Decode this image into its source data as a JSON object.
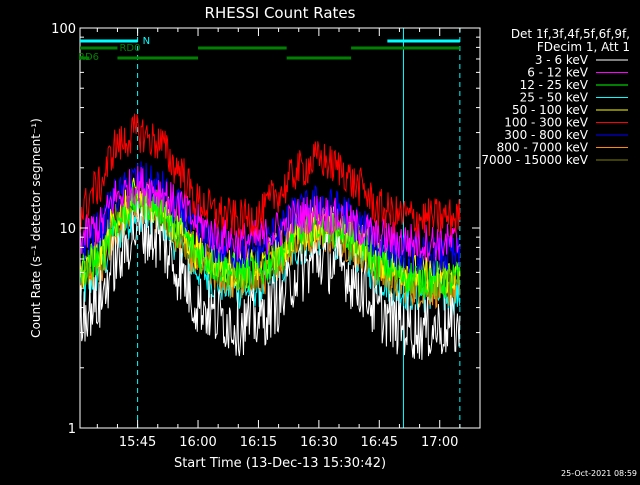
{
  "chart_data": {
    "type": "line",
    "title": "RHESSI Count Rates",
    "xlabel": "Start Time (13-Dec-13 15:30:42)",
    "ylabel": "Count Rate (s⁻¹ detector segment⁻¹)",
    "yscale": "log",
    "ylim": [
      1,
      100
    ],
    "xlim": [
      "15:30:42",
      "17:10:00"
    ],
    "x_ticks": [
      "15:45",
      "16:00",
      "16:15",
      "16:30",
      "16:45",
      "17:00"
    ],
    "y_ticks": [
      "1",
      "10",
      "100"
    ],
    "time_points": [
      "15:30:42",
      "15:35",
      "15:40",
      "15:45",
      "15:50",
      "15:55",
      "16:00",
      "16:05",
      "16:10",
      "16:15",
      "16:20",
      "16:25",
      "16:30",
      "16:35",
      "16:40",
      "16:45",
      "16:50",
      "16:55",
      "17:00",
      "17:05"
    ],
    "series": [
      {
        "name": "3 - 6 keV",
        "color": "#ffffff",
        "values": [
          3.8,
          4.2,
          7.0,
          10.0,
          8.8,
          6.2,
          4.2,
          3.6,
          3.3,
          3.5,
          4.3,
          6.0,
          7.0,
          6.5,
          5.2,
          3.8,
          3.3,
          3.1,
          3.2,
          3.2
        ]
      },
      {
        "name": "6 - 12 keV",
        "color": "#ff00ff",
        "values": [
          9.0,
          10.0,
          14.5,
          16.5,
          15.5,
          13.0,
          10.5,
          9.2,
          8.6,
          8.8,
          9.8,
          11.5,
          12.0,
          11.2,
          10.0,
          9.0,
          8.6,
          8.5,
          8.5,
          8.4
        ]
      },
      {
        "name": "12 - 25 keV",
        "color": "#00ff00",
        "values": [
          6.0,
          7.0,
          11.0,
          14.0,
          13.0,
          10.0,
          7.5,
          6.5,
          6.0,
          6.1,
          7.5,
          9.5,
          10.5,
          10.0,
          8.5,
          6.8,
          6.0,
          5.6,
          5.5,
          5.5
        ]
      },
      {
        "name": "25 - 50 keV",
        "color": "#00ffff",
        "values": [
          4.8,
          5.8,
          9.5,
          12.0,
          11.0,
          8.5,
          6.2,
          5.3,
          4.9,
          5.0,
          6.2,
          8.0,
          9.0,
          8.5,
          7.2,
          5.6,
          4.9,
          4.7,
          4.6,
          4.6
        ]
      },
      {
        "name": "50 - 100 keV",
        "color": "#ffff00",
        "values": [
          6.2,
          7.2,
          11.5,
          14.5,
          13.2,
          10.2,
          7.8,
          6.8,
          6.2,
          6.4,
          7.8,
          9.8,
          10.8,
          10.2,
          8.8,
          7.0,
          6.3,
          5.9,
          5.8,
          5.8
        ]
      },
      {
        "name": "100 - 300 keV",
        "color": "#ff0000",
        "values": [
          12.0,
          16.0,
          26.0,
          30.0,
          27.0,
          20.0,
          13.5,
          11.8,
          11.0,
          11.5,
          15.0,
          19.5,
          22.0,
          20.0,
          16.0,
          12.5,
          11.5,
          11.2,
          11.3,
          11.3
        ]
      },
      {
        "name": "300 - 800 keV",
        "color": "#0000ff",
        "values": [
          8.2,
          9.6,
          14.5,
          17.5,
          16.0,
          12.5,
          9.2,
          8.0,
          7.6,
          7.8,
          9.6,
          12.0,
          13.2,
          12.4,
          10.4,
          8.3,
          7.6,
          7.3,
          7.2,
          7.2
        ]
      },
      {
        "name": "800 - 7000 keV",
        "color": "#ff8c00",
        "values": [
          5.4,
          6.4,
          10.0,
          12.8,
          11.8,
          9.0,
          6.8,
          5.8,
          5.3,
          5.5,
          6.9,
          8.8,
          9.6,
          9.0,
          7.6,
          6.0,
          5.3,
          5.0,
          5.0,
          5.0
        ]
      },
      {
        "name": "7000 - 15000 keV",
        "color": "#808000",
        "values": [
          6.0,
          7.0,
          11.0,
          13.5,
          12.2,
          9.6,
          7.2,
          6.2,
          5.8,
          5.9,
          7.2,
          9.2,
          10.2,
          9.6,
          8.2,
          6.4,
          5.8,
          5.4,
          5.4,
          5.4
        ]
      }
    ],
    "legend_header": [
      "Det 1f,3f,4f,5f,6f,9f,",
      "FDecim 1, Att 1"
    ],
    "flags": {
      "labels": [
        "N",
        "RD0",
        "RD6"
      ],
      "N_bars": [
        [
          "15:30:42",
          "15:45"
        ],
        [
          "16:47",
          "17:05"
        ]
      ],
      "RD0_bars": [
        [
          "15:30:42",
          "15:40"
        ],
        [
          "16:00",
          "16:22"
        ],
        [
          "16:38",
          "17:05"
        ]
      ],
      "RD6_bars": [
        [
          "15:30:42",
          "15:33"
        ],
        [
          "15:40",
          "16:00"
        ],
        [
          "16:22",
          "16:38"
        ]
      ],
      "colors": {
        "N": "#00ffff",
        "RD": "#008000"
      }
    },
    "vertical_markers": {
      "solid": [
        "15:30:42",
        "16:51"
      ],
      "dashed": [
        "15:45",
        "17:05"
      ],
      "color": "#00ffff"
    }
  },
  "footer": {
    "timestamp": "25-Oct-2021 08:59"
  }
}
